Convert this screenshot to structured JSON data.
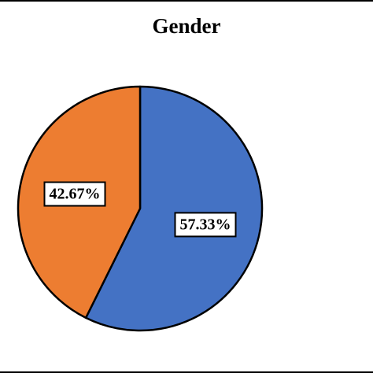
{
  "chart_data": {
    "type": "pie",
    "title": "Gender",
    "slices": [
      {
        "value": 57.33,
        "label": "57.33%",
        "color": "#4472C4"
      },
      {
        "value": 42.67,
        "label": "42.67%",
        "color": "#ED7D31"
      }
    ],
    "start_angle_deg": 0,
    "direction": "clockwise",
    "legend": "none"
  }
}
